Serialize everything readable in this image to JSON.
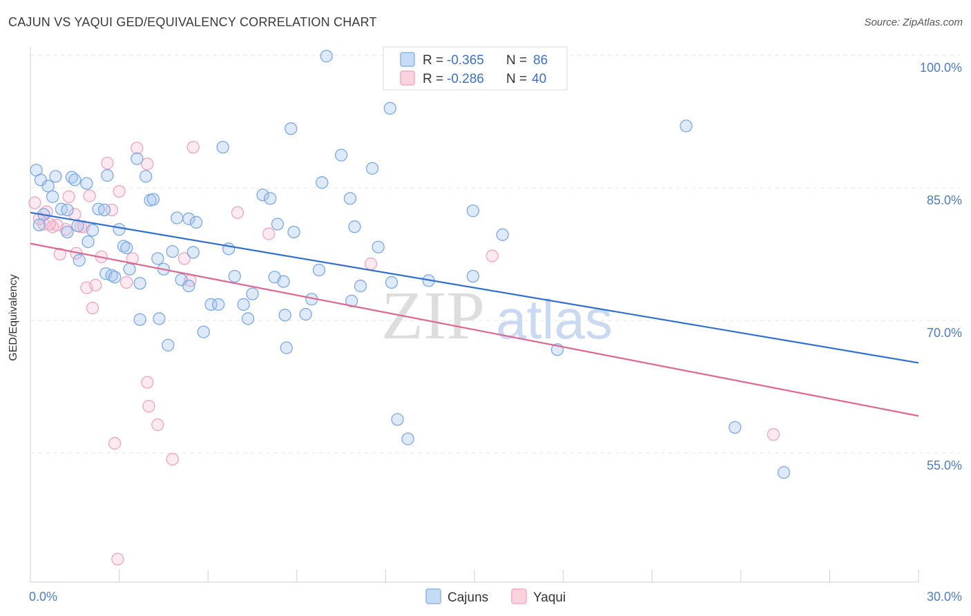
{
  "chart_data": {
    "type": "scatter",
    "title": "CAJUN VS YAQUI GED/EQUIVALENCY CORRELATION CHART",
    "source": "Source: ZipAtlas.com",
    "ylabel": "GED/Equivalency",
    "xlabel": "",
    "xlim": [
      0,
      30
    ],
    "ylim": [
      40,
      102
    ],
    "x_tick_labels": [
      "0.0%",
      "30.0%"
    ],
    "y_ticks": [
      100,
      85,
      70,
      55
    ],
    "y_tick_labels": [
      "100.0%",
      "85.0%",
      "70.0%",
      "55.0%"
    ],
    "watermark": {
      "zip": "ZIP",
      "atlas": "atlas"
    },
    "colors": {
      "cajuns": "#8ab4ec",
      "yaqui": "#f4a9c1",
      "cajuns_line": "#2f6fd1",
      "yaqui_line": "#e0668f",
      "text_blue": "#3a6fd0"
    },
    "legend": {
      "r_label": "R =",
      "n_label": "N =",
      "entries": [
        {
          "name": "Cajuns",
          "r": "-0.365",
          "n": "86"
        },
        {
          "name": "Yaqui",
          "r": "-0.286",
          "n": "40"
        }
      ]
    },
    "series": [
      {
        "name": "Cajuns",
        "trend": [
          [
            0,
            82.2
          ],
          [
            30,
            65.2
          ]
        ],
        "points": [
          [
            0.2,
            87.0
          ],
          [
            0.35,
            85.9
          ],
          [
            0.6,
            85.2
          ],
          [
            0.75,
            84.0
          ],
          [
            0.85,
            86.3
          ],
          [
            1.05,
            82.6
          ],
          [
            1.25,
            82.5
          ],
          [
            1.4,
            86.2
          ],
          [
            1.5,
            85.9
          ],
          [
            1.9,
            85.5
          ],
          [
            2.6,
            86.4
          ],
          [
            0.45,
            82.0
          ],
          [
            1.25,
            80.0
          ],
          [
            1.6,
            80.7
          ],
          [
            2.1,
            80.2
          ],
          [
            1.95,
            78.9
          ],
          [
            1.65,
            76.8
          ],
          [
            2.3,
            82.6
          ],
          [
            2.5,
            82.5
          ],
          [
            3.0,
            80.3
          ],
          [
            3.15,
            78.4
          ],
          [
            3.25,
            78.2
          ],
          [
            3.35,
            75.8
          ],
          [
            2.55,
            75.3
          ],
          [
            2.75,
            75.1
          ],
          [
            2.85,
            74.9
          ],
          [
            3.7,
            74.2
          ],
          [
            3.6,
            88.3
          ],
          [
            3.9,
            86.3
          ],
          [
            4.05,
            83.6
          ],
          [
            4.15,
            83.7
          ],
          [
            4.3,
            77.0
          ],
          [
            4.5,
            75.8
          ],
          [
            4.8,
            77.8
          ],
          [
            4.95,
            81.6
          ],
          [
            5.1,
            74.6
          ],
          [
            5.35,
            81.5
          ],
          [
            5.5,
            77.7
          ],
          [
            5.6,
            81.1
          ],
          [
            5.35,
            73.9
          ],
          [
            3.7,
            70.1
          ],
          [
            4.35,
            70.2
          ],
          [
            4.65,
            67.2
          ],
          [
            5.85,
            68.7
          ],
          [
            6.1,
            71.8
          ],
          [
            6.35,
            71.8
          ],
          [
            6.5,
            89.6
          ],
          [
            6.7,
            78.1
          ],
          [
            6.9,
            75.0
          ],
          [
            7.2,
            71.8
          ],
          [
            7.35,
            70.2
          ],
          [
            7.5,
            73.0
          ],
          [
            7.85,
            84.2
          ],
          [
            8.1,
            83.8
          ],
          [
            8.25,
            74.9
          ],
          [
            8.35,
            80.9
          ],
          [
            8.55,
            74.4
          ],
          [
            8.6,
            70.6
          ],
          [
            8.65,
            66.9
          ],
          [
            8.8,
            91.7
          ],
          [
            8.9,
            80.0
          ],
          [
            9.3,
            70.7
          ],
          [
            9.5,
            72.4
          ],
          [
            9.75,
            75.7
          ],
          [
            9.85,
            85.6
          ],
          [
            10.0,
            99.9
          ],
          [
            10.5,
            88.7
          ],
          [
            10.85,
            72.2
          ],
          [
            10.95,
            80.6
          ],
          [
            10.8,
            83.8
          ],
          [
            11.15,
            73.9
          ],
          [
            11.55,
            87.2
          ],
          [
            11.75,
            78.3
          ],
          [
            12.2,
            74.3
          ],
          [
            12.15,
            94.0
          ],
          [
            12.4,
            58.8
          ],
          [
            12.75,
            56.6
          ],
          [
            13.45,
            74.5
          ],
          [
            14.95,
            82.4
          ],
          [
            14.95,
            75.0
          ],
          [
            15.95,
            79.7
          ],
          [
            17.8,
            66.7
          ],
          [
            22.15,
            92.0
          ],
          [
            23.8,
            57.9
          ],
          [
            25.45,
            52.8
          ],
          [
            0.3,
            80.8
          ]
        ]
      },
      {
        "name": "Yaqui",
        "trend": [
          [
            0,
            78.7
          ],
          [
            30,
            59.2
          ]
        ],
        "points": [
          [
            0.15,
            83.3
          ],
          [
            0.3,
            81.5
          ],
          [
            0.45,
            80.9
          ],
          [
            0.55,
            82.3
          ],
          [
            0.75,
            80.6
          ],
          [
            0.9,
            80.8
          ],
          [
            1.0,
            77.5
          ],
          [
            1.2,
            80.3
          ],
          [
            1.3,
            84.0
          ],
          [
            1.5,
            82.0
          ],
          [
            1.55,
            77.6
          ],
          [
            1.7,
            80.6
          ],
          [
            1.9,
            73.7
          ],
          [
            2.0,
            84.1
          ],
          [
            2.1,
            71.4
          ],
          [
            2.2,
            74.0
          ],
          [
            2.4,
            77.2
          ],
          [
            2.6,
            87.8
          ],
          [
            2.75,
            82.5
          ],
          [
            3.0,
            84.6
          ],
          [
            3.25,
            74.3
          ],
          [
            3.45,
            77.0
          ],
          [
            3.6,
            89.5
          ],
          [
            3.95,
            87.7
          ],
          [
            3.95,
            63.0
          ],
          [
            4.0,
            60.3
          ],
          [
            4.3,
            58.2
          ],
          [
            2.85,
            56.1
          ],
          [
            4.8,
            54.3
          ],
          [
            5.2,
            77.0
          ],
          [
            5.4,
            74.5
          ],
          [
            5.5,
            89.6
          ],
          [
            7.0,
            82.2
          ],
          [
            8.05,
            79.8
          ],
          [
            11.5,
            76.4
          ],
          [
            15.6,
            77.3
          ],
          [
            25.1,
            57.1
          ],
          [
            2.95,
            43.0
          ],
          [
            0.65,
            80.9
          ],
          [
            1.8,
            80.6
          ]
        ]
      }
    ]
  }
}
